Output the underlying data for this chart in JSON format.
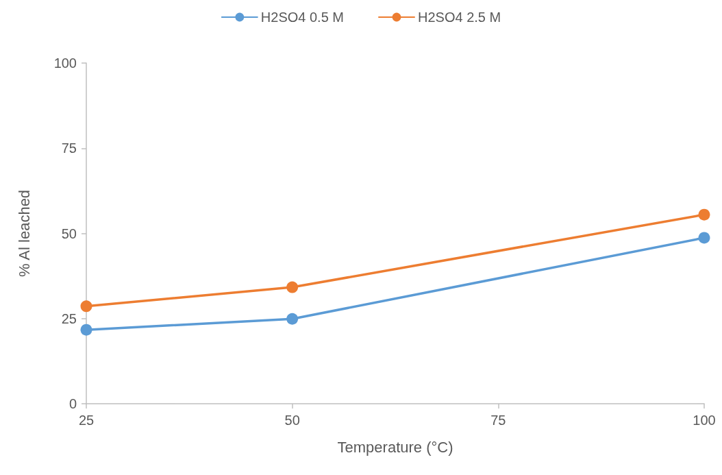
{
  "chart_data": {
    "type": "line",
    "xlabel": "Temperature (°C)",
    "ylabel": "% Al leached",
    "x": [
      25,
      50,
      100
    ],
    "series": [
      {
        "name": "H2SO4 0.5 M",
        "color": "#5b9bd5",
        "values": [
          21.7,
          24.9,
          48.7
        ]
      },
      {
        "name": "H2SO4 2.5 M",
        "color": "#ed7d31",
        "values": [
          28.6,
          34.2,
          55.5
        ]
      }
    ],
    "xlim": [
      25,
      100
    ],
    "xticks": [
      25,
      50,
      75,
      100
    ],
    "ylim": [
      0,
      100
    ],
    "yticks": [
      0,
      25,
      50,
      75,
      100
    ],
    "grid": false,
    "legend": "top",
    "marker": "circle",
    "line_style": "solid"
  }
}
